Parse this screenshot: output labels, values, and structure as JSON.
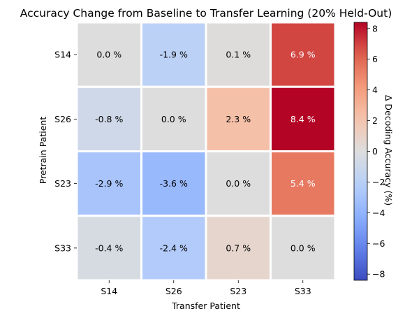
{
  "chart_data": {
    "type": "heatmap",
    "title": "Accuracy Change from Baseline to Transfer Learning (20% Held-Out)",
    "xlabel": "Transfer Patient",
    "ylabel": "Pretrain Patient",
    "x_categories": [
      "S14",
      "S26",
      "S23",
      "S33"
    ],
    "y_categories": [
      "S14",
      "S26",
      "S23",
      "S33"
    ],
    "values": [
      [
        0.0,
        -1.9,
        0.1,
        6.9
      ],
      [
        -0.8,
        0.0,
        2.3,
        8.4
      ],
      [
        -2.9,
        -3.6,
        0.0,
        5.4
      ],
      [
        -0.4,
        -2.4,
        0.7,
        0.0
      ]
    ],
    "cell_labels": [
      [
        "0.0 %",
        "-1.9 %",
        "0.1 %",
        "6.9 %"
      ],
      [
        "-0.8 %",
        "0.0 %",
        "2.3 %",
        "8.4 %"
      ],
      [
        "-2.9 %",
        "-3.6 %",
        "0.0 %",
        "5.4 %"
      ],
      [
        "-0.4 %",
        "-2.4 %",
        "0.7 %",
        "0.0 %"
      ]
    ],
    "colorbar": {
      "label": "Δ Decoding Accuracy (%)",
      "range": [
        -8.4,
        8.4
      ],
      "ticks": [
        -8,
        -6,
        -4,
        -2,
        0,
        2,
        4,
        6,
        8
      ],
      "tick_labels": [
        "−8",
        "−6",
        "−4",
        "−2",
        "0",
        "2",
        "4",
        "6",
        "8"
      ],
      "colormap": "coolwarm"
    },
    "grid": false
  }
}
